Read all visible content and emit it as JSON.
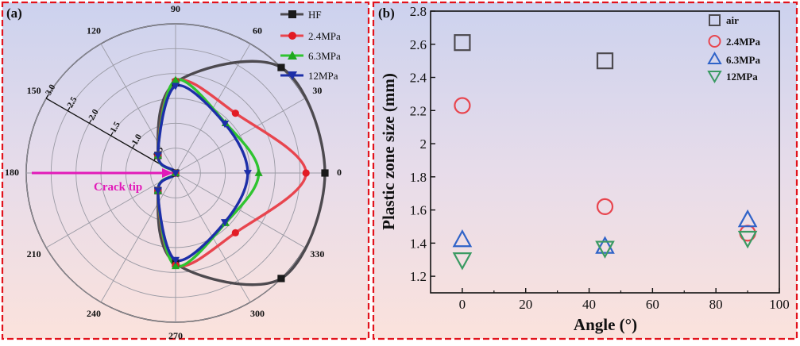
{
  "panel_a": {
    "label": "(a)",
    "annotation": "Crack tip",
    "angle_labels": [
      "0",
      "30",
      "60",
      "90",
      "120",
      "150",
      "180",
      "210",
      "240",
      "270",
      "300",
      "330"
    ],
    "radial_ticks": [
      "0.5",
      "1.0",
      "1.5",
      "2.0",
      "2.5",
      "3.0"
    ]
  },
  "panel_b": {
    "label": "(b)"
  },
  "chart_data": [
    {
      "type": "polar-line",
      "title": "",
      "angles_deg": [
        0,
        45,
        90,
        135,
        180,
        225,
        270,
        315
      ],
      "rlim": [
        0,
        3.0
      ],
      "radial_ticks": [
        0.5,
        1.0,
        1.5,
        2.0,
        2.5,
        3.0
      ],
      "legend_position": "top-right",
      "series": [
        {
          "name": "HF",
          "color": "#4d4a4f",
          "marker": "square",
          "r": [
            3.0,
            3.0,
            1.82,
            0.5,
            0,
            0.5,
            1.82,
            3.0
          ]
        },
        {
          "name": "2.4MPa",
          "color": "#e8454e",
          "marker": "circle",
          "r": [
            2.62,
            1.7,
            1.85,
            0.5,
            0,
            0.5,
            1.85,
            1.7
          ]
        },
        {
          "name": "6.3MPa",
          "color": "#2fc430",
          "marker": "triangle-up",
          "r": [
            1.67,
            1.42,
            1.87,
            0.5,
            0,
            0.5,
            1.87,
            1.42
          ]
        },
        {
          "name": "12MPa",
          "color": "#1d2fa8",
          "marker": "triangle-down",
          "r": [
            1.45,
            1.4,
            1.75,
            0.5,
            0,
            0.5,
            1.75,
            1.4
          ]
        }
      ]
    },
    {
      "type": "scatter",
      "title": "",
      "xlabel": "Angle (°)",
      "ylabel": "Plastic zone size (mm)",
      "xlim": [
        -10,
        100
      ],
      "ylim": [
        1.1,
        2.8
      ],
      "xticks": [
        0,
        20,
        40,
        60,
        80,
        100
      ],
      "yticks": [
        1.2,
        1.4,
        1.6,
        1.8,
        2.0,
        2.2,
        2.4,
        2.6,
        2.8
      ],
      "legend_position": "top-right",
      "series": [
        {
          "name": "air",
          "color": "#4d4a4f",
          "marker": "square",
          "x": [
            0,
            45
          ],
          "y": [
            2.61,
            2.5
          ]
        },
        {
          "name": "2.4MPa",
          "color": "#e8454e",
          "marker": "circle",
          "x": [
            0,
            45,
            90
          ],
          "y": [
            2.23,
            1.62,
            1.46
          ]
        },
        {
          "name": "6.3MPa",
          "color": "#2f63c8",
          "marker": "triangle-up",
          "x": [
            0,
            45,
            90
          ],
          "y": [
            1.42,
            1.38,
            1.54
          ]
        },
        {
          "name": "12MPa",
          "color": "#3a9a62",
          "marker": "triangle-down",
          "x": [
            0,
            45,
            90
          ],
          "y": [
            1.3,
            1.37,
            1.43
          ]
        }
      ]
    }
  ]
}
